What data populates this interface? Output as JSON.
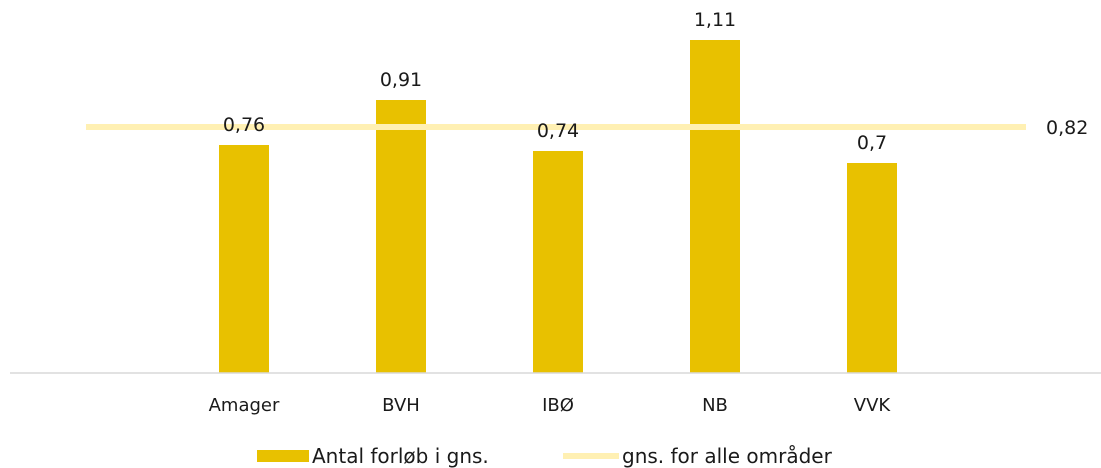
{
  "chart_data": {
    "type": "bar",
    "categories": [
      "Amager",
      "BVH",
      "IBØ",
      "NB",
      "VVK"
    ],
    "series": [
      {
        "name": "Antal forløb i gns.",
        "type": "bar",
        "values": [
          0.76,
          0.91,
          0.74,
          1.11,
          0.7
        ],
        "labels": [
          "0,76",
          "0,91",
          "0,74",
          "1,11",
          "0,7"
        ],
        "color": "#E8C100"
      },
      {
        "name": "gns. for alle områder",
        "type": "line",
        "value": 0.82,
        "label": "0,82",
        "color": "#FFF0B3"
      }
    ],
    "ylim": [
      0,
      1.2
    ],
    "grid": false,
    "legend_position": "bottom",
    "xlabel": "",
    "ylabel": "",
    "title": ""
  }
}
